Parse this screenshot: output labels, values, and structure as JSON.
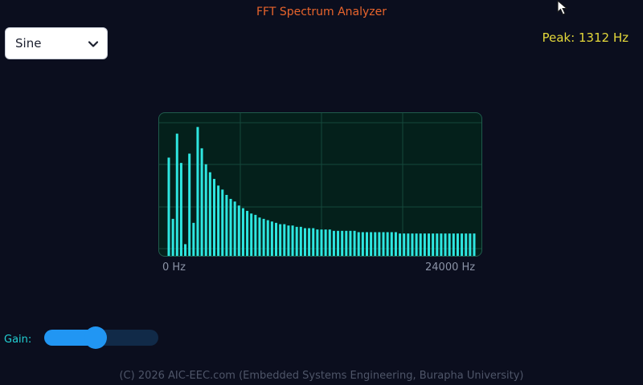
{
  "app": {
    "title": "FFT Spectrum Analyzer",
    "accent_color": "#e8642c"
  },
  "waveform_select": {
    "selected": "Sine",
    "icon": "chevron-down-icon"
  },
  "peak": {
    "text": "Peak: 1312 Hz",
    "color": "#e4d83a"
  },
  "chart_data": {
    "type": "bar",
    "bar_color": "#2ee6e0",
    "grid": true,
    "ylim": [
      0,
      100
    ],
    "values": [
      75,
      29,
      93,
      71,
      10,
      78,
      26,
      98,
      82,
      70,
      64,
      59,
      54,
      51,
      47,
      44,
      42,
      39,
      37,
      35,
      33,
      32,
      30,
      29,
      28,
      27,
      26,
      25,
      25,
      24,
      24,
      23,
      23,
      22,
      22,
      22,
      21,
      21,
      21,
      21,
      20,
      20,
      20,
      20,
      20,
      20,
      19,
      19,
      19,
      19,
      19,
      19,
      19,
      19,
      19,
      19,
      18,
      18,
      18,
      18,
      18,
      18,
      18,
      18,
      18,
      18,
      18,
      18,
      18,
      18,
      18,
      18,
      18,
      18,
      18
    ],
    "x_labels": [
      "0 Hz",
      "24000 Hz"
    ]
  },
  "gain": {
    "label": "Gain:",
    "value": 0.45,
    "color": "#2196f3"
  },
  "footer": {
    "text": "(C) 2026 AIC-EEC.com (Embedded Systems Engineering, Burapha University)"
  }
}
